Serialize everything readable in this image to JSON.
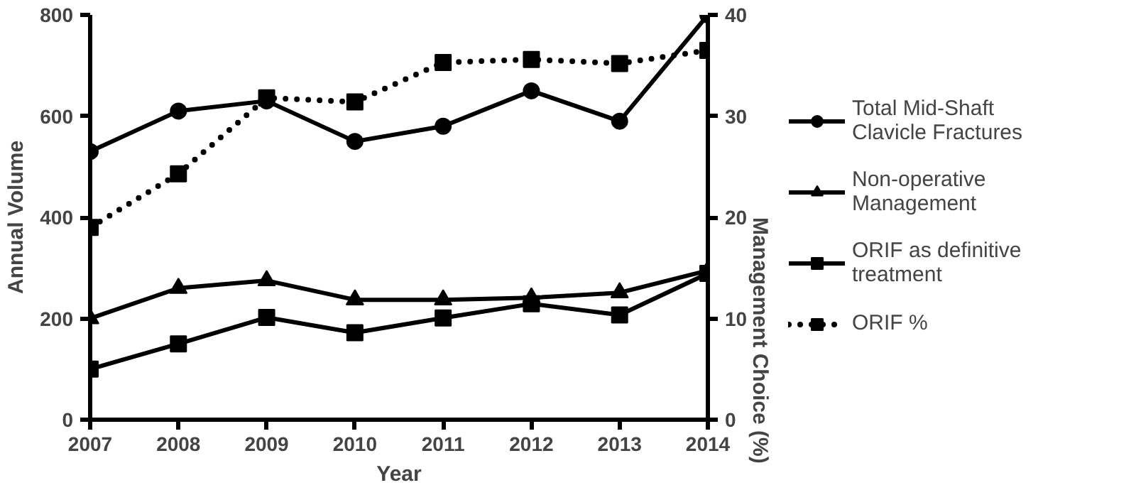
{
  "chart_data": {
    "type": "line",
    "xlabel": "Year",
    "ylabel": "Annual Volume",
    "y2label": "Management Choice (%)",
    "x": [
      2007,
      2008,
      2009,
      2010,
      2011,
      2012,
      2013,
      2014
    ],
    "xlim": [
      2007,
      2014
    ],
    "xticks": [
      2007,
      2008,
      2009,
      2010,
      2011,
      2012,
      2013,
      2014
    ],
    "ylim": [
      0,
      800
    ],
    "yticks": [
      0,
      200,
      400,
      600,
      800
    ],
    "y2lim": [
      0,
      40
    ],
    "y2ticks": [
      0,
      10,
      20,
      30,
      40
    ],
    "grid": false,
    "legend": "right",
    "series": [
      {
        "name": "Total Mid-Shaft Clavicle Fractures",
        "color": "#000000",
        "marker": "circle",
        "line_style": "solid",
        "values": [
          530,
          610,
          630,
          550,
          580,
          650,
          590,
          800
        ]
      },
      {
        "name": "Non-operative Management",
        "color": "#000000",
        "marker": "triangle",
        "line_style": "solid",
        "values": [
          200,
          260,
          275,
          237,
          237,
          241,
          251,
          295
        ]
      },
      {
        "name": "ORIF as definitive treatment",
        "color": "#000000",
        "marker": "square",
        "line_style": "solid",
        "values": [
          100,
          150,
          202,
          172,
          201,
          229,
          207,
          289
        ]
      },
      {
        "name": "ORIF %",
        "color": "#000000",
        "marker": "square",
        "line_style": "dotted",
        "axis": "y2",
        "values": [
          19,
          24.3,
          31.8,
          31.4,
          35.3,
          35.6,
          35.2,
          36.5
        ]
      }
    ]
  }
}
